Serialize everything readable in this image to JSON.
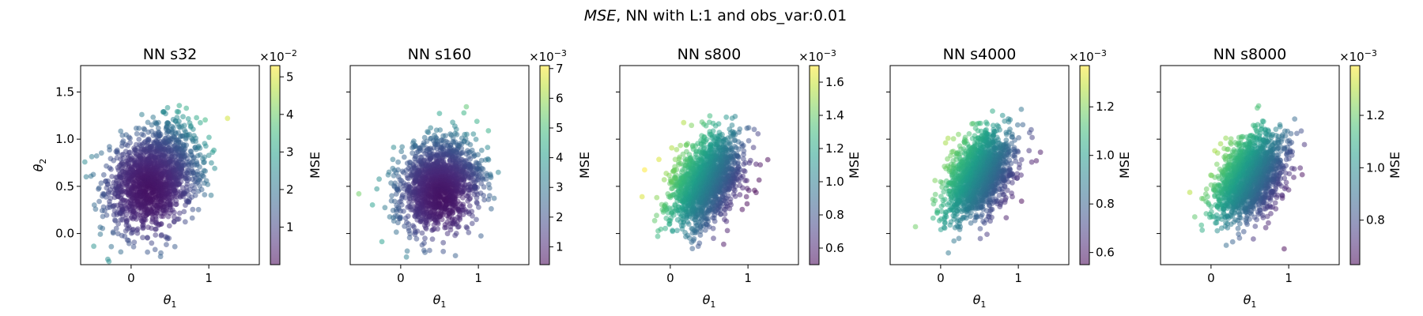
{
  "figure": {
    "title_italic": "MSE",
    "title_rest": ", NN with L:1 and obs_var:0.01"
  },
  "chart_data": [
    {
      "type": "scatter",
      "title": "NN s32",
      "xlabel": "θ1",
      "ylabel": "θ2",
      "xlim": [
        -0.65,
        1.65
      ],
      "ylim": [
        -0.33,
        1.78
      ],
      "xticks": [
        0,
        1
      ],
      "xtick_labels": [
        "0",
        "1"
      ],
      "yticks": [
        0.0,
        0.5,
        1.0,
        1.5
      ],
      "ytick_labels": [
        "0.0",
        "0.5",
        "1.0",
        "1.5"
      ],
      "point_cloud": {
        "center": [
          0.3,
          0.6
        ],
        "spread": [
          0.3,
          0.27
        ],
        "correlation": 0.3,
        "count": 1600
      },
      "color_field": {
        "gradient_dir": [
          1,
          0.9
        ],
        "center": [
          0.25,
          0.45
        ],
        "scale": 0.17
      },
      "colorbar": {
        "label": "MSE",
        "multiplier": "×10−2",
        "min": 0.0,
        "max": 5.3,
        "ticks": [
          1,
          2,
          3,
          4,
          5
        ],
        "tick_labels": [
          "1",
          "2",
          "3",
          "4",
          "5"
        ]
      }
    },
    {
      "type": "scatter",
      "title": "NN s160",
      "xlabel": "θ1",
      "ylabel": "",
      "xlim": [
        -0.65,
        1.65
      ],
      "ylim": [
        -0.33,
        1.78
      ],
      "xticks": [
        0,
        1
      ],
      "xtick_labels": [
        "0",
        "1"
      ],
      "yticks": [
        0.0,
        0.5,
        1.0,
        1.5
      ],
      "ytick_labels": [
        "",
        "",
        "",
        ""
      ],
      "point_cloud": {
        "center": [
          0.5,
          0.52
        ],
        "spread": [
          0.26,
          0.24
        ],
        "correlation": 0.2,
        "count": 1500
      },
      "color_field": {
        "gradient_dir": [
          0.9,
          1
        ],
        "center": [
          0.55,
          0.38
        ],
        "scale": 0.2
      },
      "colorbar": {
        "label": "MSE",
        "multiplier": "×10−3",
        "min": 0.4,
        "max": 7.1,
        "ticks": [
          1,
          2,
          3,
          4,
          5,
          6,
          7
        ],
        "tick_labels": [
          "1",
          "2",
          "3",
          "4",
          "5",
          "6",
          "7"
        ]
      }
    },
    {
      "type": "scatter",
      "title": "NN s800",
      "xlabel": "θ1",
      "ylabel": "",
      "xlim": [
        -0.65,
        1.65
      ],
      "ylim": [
        -0.33,
        1.78
      ],
      "xticks": [
        0,
        1
      ],
      "xtick_labels": [
        "0",
        "1"
      ],
      "yticks": [
        0.0,
        0.5,
        1.0,
        1.5
      ],
      "ytick_labels": [
        "",
        "",
        "",
        ""
      ],
      "point_cloud": {
        "center": [
          0.45,
          0.55
        ],
        "spread": [
          0.24,
          0.24
        ],
        "correlation": 0.35,
        "count": 1500
      },
      "color_field": {
        "gradient_dir": [
          -1,
          0.55
        ],
        "center": [
          0.45,
          0.55
        ],
        "scale": 0.75
      },
      "colorbar": {
        "label": "MSE",
        "multiplier": "×10−3",
        "min": 0.5,
        "max": 1.7,
        "ticks": [
          0.6,
          0.8,
          1.0,
          1.2,
          1.4,
          1.6
        ],
        "tick_labels": [
          "0.6",
          "0.8",
          "1.0",
          "1.2",
          "1.4",
          "1.6"
        ]
      }
    },
    {
      "type": "scatter",
      "title": "NN s4000",
      "xlabel": "θ1",
      "ylabel": "",
      "xlim": [
        -0.65,
        1.65
      ],
      "ylim": [
        -0.33,
        1.78
      ],
      "xticks": [
        0,
        1
      ],
      "xtick_labels": [
        "0",
        "1"
      ],
      "yticks": [
        0.0,
        0.5,
        1.0,
        1.5
      ],
      "ytick_labels": [
        "",
        "",
        "",
        ""
      ],
      "point_cloud": {
        "center": [
          0.5,
          0.62
        ],
        "spread": [
          0.22,
          0.23
        ],
        "correlation": 0.4,
        "count": 1500
      },
      "color_field": {
        "gradient_dir": [
          -1,
          0.6
        ],
        "center": [
          0.5,
          0.62
        ],
        "scale": 0.7
      },
      "colorbar": {
        "label": "MSE",
        "multiplier": "×10−3",
        "min": 0.55,
        "max": 1.37,
        "ticks": [
          0.6,
          0.8,
          1.0,
          1.2
        ],
        "tick_labels": [
          "0.6",
          "0.8",
          "1.0",
          "1.2"
        ]
      }
    },
    {
      "type": "scatter",
      "title": "NN s8000",
      "xlabel": "θ1",
      "ylabel": "",
      "xlim": [
        -0.65,
        1.65
      ],
      "ylim": [
        -0.33,
        1.78
      ],
      "xticks": [
        0,
        1
      ],
      "xtick_labels": [
        "0",
        "1"
      ],
      "yticks": [
        0.0,
        0.5,
        1.0,
        1.5
      ],
      "ytick_labels": [
        "",
        "",
        "",
        ""
      ],
      "point_cloud": {
        "center": [
          0.5,
          0.6
        ],
        "spread": [
          0.23,
          0.23
        ],
        "correlation": 0.4,
        "count": 1500
      },
      "color_field": {
        "gradient_dir": [
          -1,
          0.65
        ],
        "center": [
          0.5,
          0.6
        ],
        "scale": 0.72
      },
      "colorbar": {
        "label": "MSE",
        "multiplier": "×10−3",
        "min": 0.63,
        "max": 1.39,
        "ticks": [
          0.8,
          1.0,
          1.2
        ],
        "tick_labels": [
          "0.8",
          "1.0",
          "1.2"
        ]
      }
    }
  ]
}
